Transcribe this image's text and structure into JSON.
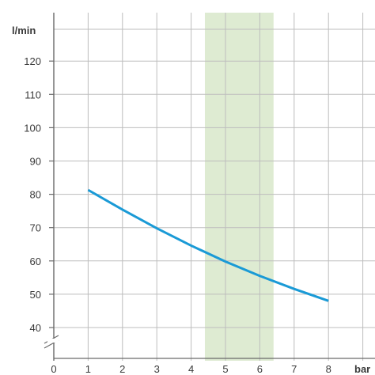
{
  "chart_data": {
    "type": "line",
    "xlabel": "bar",
    "ylabel": "l/min",
    "xlim": [
      0,
      9
    ],
    "ylim": [
      35,
      124
    ],
    "x_ticks": [
      "0",
      "1",
      "2",
      "3",
      "4",
      "5",
      "6",
      "7",
      "8"
    ],
    "y_ticks": [
      "40",
      "50",
      "60",
      "70",
      "80",
      "90",
      "100",
      "110",
      "120"
    ],
    "grid": true,
    "axis_break_on_y": true,
    "highlight_band": {
      "x_from": 4.4,
      "x_to": 6.4,
      "color": "#deebd2"
    },
    "series": [
      {
        "color": "#1a9ad6",
        "x": [
          1,
          2,
          3,
          4,
          5,
          6,
          7,
          8
        ],
        "y": [
          81.3,
          75.4,
          69.8,
          64.6,
          59.8,
          55.5,
          51.6,
          48.0
        ]
      }
    ]
  },
  "colors": {
    "grid": "#bdbdbd",
    "axis": "#6a6a6a",
    "text": "#3a3a3a"
  }
}
